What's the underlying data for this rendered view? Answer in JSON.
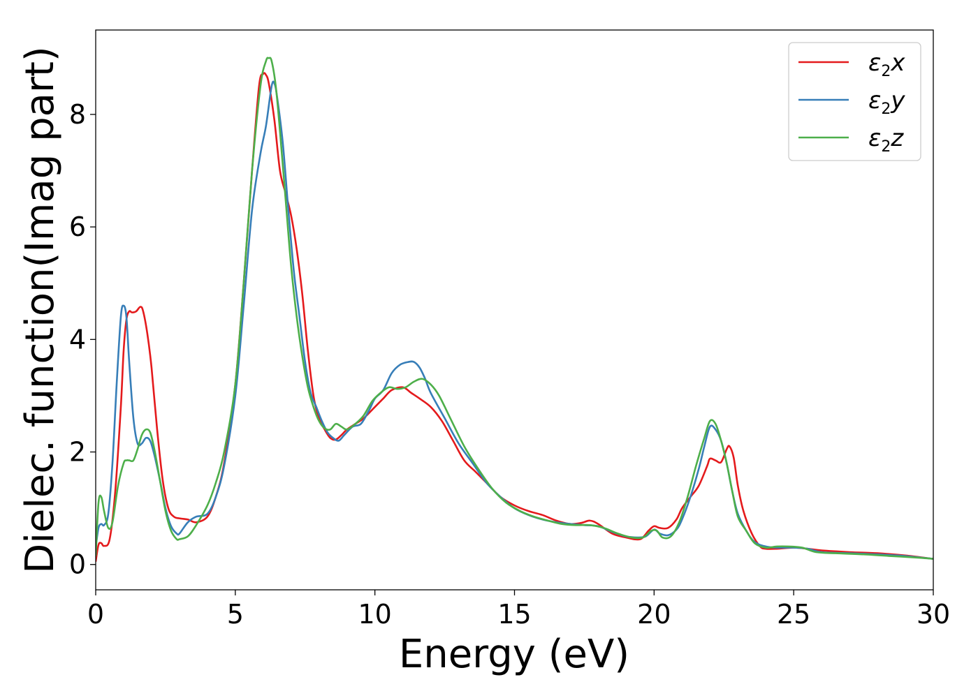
{
  "chart_data": {
    "type": "line",
    "title": "",
    "xlabel": "Energy (eV)",
    "ylabel": "Dielec. function(Imag part)",
    "xlim": [
      0,
      30
    ],
    "ylim": [
      -0.45,
      9.5
    ],
    "xticks": [
      0,
      5,
      10,
      15,
      20,
      25,
      30
    ],
    "xtick_labels": [
      "0",
      "5",
      "10",
      "15",
      "20",
      "25",
      "30"
    ],
    "yticks": [
      0,
      2,
      4,
      6,
      8
    ],
    "ytick_labels": [
      "0",
      "2",
      "4",
      "6",
      "8"
    ],
    "grid": false,
    "legend": "top-right",
    "series": [
      {
        "name": "ε2x",
        "label_main": "ε",
        "label_sub": "2",
        "label_var": "x",
        "color": "#e41a1c",
        "x": [
          0,
          0.1,
          0.2,
          0.3,
          0.5,
          0.7,
          0.9,
          1.0,
          1.1,
          1.2,
          1.3,
          1.45,
          1.6,
          1.7,
          1.85,
          2.0,
          2.2,
          2.4,
          2.6,
          2.8,
          3.0,
          3.3,
          3.6,
          4.0,
          4.3,
          4.6,
          5.0,
          5.3,
          5.6,
          5.85,
          6.0,
          6.1,
          6.2,
          6.4,
          6.6,
          6.8,
          7.0,
          7.2,
          7.4,
          7.6,
          7.8,
          8.0,
          8.2,
          8.4,
          8.6,
          8.8,
          9.0,
          9.3,
          9.6,
          10.0,
          10.3,
          10.6,
          11.0,
          11.3,
          11.6,
          12.0,
          12.4,
          12.8,
          13.2,
          13.6,
          14.0,
          14.5,
          15.0,
          15.5,
          16.0,
          16.5,
          17.0,
          17.4,
          17.7,
          18.0,
          18.5,
          19.0,
          19.5,
          19.8,
          20.0,
          20.2,
          20.5,
          20.8,
          21.0,
          21.3,
          21.6,
          21.9,
          22.0,
          22.2,
          22.4,
          22.6,
          22.7,
          22.85,
          23.0,
          23.2,
          23.5,
          23.8,
          24.0,
          24.4,
          25.0,
          25.5,
          26.0,
          27.0,
          28.0,
          29.0,
          30.0
        ],
        "y": [
          0.05,
          0.35,
          0.38,
          0.33,
          0.45,
          1.3,
          2.8,
          3.8,
          4.35,
          4.5,
          4.48,
          4.5,
          4.58,
          4.5,
          4.1,
          3.5,
          2.4,
          1.5,
          1.0,
          0.85,
          0.82,
          0.8,
          0.75,
          0.85,
          1.2,
          1.8,
          3.2,
          5.0,
          7.0,
          8.5,
          8.72,
          8.7,
          8.55,
          7.9,
          7.0,
          6.6,
          6.2,
          5.6,
          4.8,
          3.8,
          3.0,
          2.6,
          2.4,
          2.25,
          2.22,
          2.3,
          2.4,
          2.5,
          2.6,
          2.8,
          2.95,
          3.1,
          3.15,
          3.05,
          2.95,
          2.8,
          2.55,
          2.2,
          1.85,
          1.65,
          1.45,
          1.2,
          1.05,
          0.95,
          0.88,
          0.78,
          0.72,
          0.74,
          0.78,
          0.72,
          0.55,
          0.48,
          0.45,
          0.6,
          0.68,
          0.65,
          0.65,
          0.8,
          1.0,
          1.2,
          1.4,
          1.75,
          1.88,
          1.85,
          1.82,
          2.05,
          2.1,
          1.9,
          1.4,
          0.95,
          0.55,
          0.32,
          0.28,
          0.28,
          0.3,
          0.28,
          0.25,
          0.22,
          0.2,
          0.16,
          0.1
        ]
      },
      {
        "name": "ε2y",
        "label_main": "ε",
        "label_sub": "2",
        "label_var": "y",
        "color": "#377eb8",
        "x": [
          0,
          0.1,
          0.2,
          0.3,
          0.45,
          0.6,
          0.75,
          0.9,
          1.0,
          1.1,
          1.2,
          1.35,
          1.5,
          1.65,
          1.8,
          1.95,
          2.1,
          2.3,
          2.5,
          2.7,
          2.9,
          3.0,
          3.3,
          3.6,
          4.0,
          4.3,
          4.6,
          5.0,
          5.3,
          5.6,
          5.9,
          6.1,
          6.3,
          6.4,
          6.5,
          6.7,
          6.9,
          7.1,
          7.3,
          7.5,
          7.7,
          7.9,
          8.1,
          8.3,
          8.5,
          8.7,
          8.9,
          9.2,
          9.5,
          9.8,
          10.0,
          10.3,
          10.6,
          10.9,
          11.2,
          11.4,
          11.6,
          11.8,
          12.0,
          12.5,
          13.0,
          13.5,
          14.0,
          14.5,
          15.0,
          15.5,
          16.0,
          16.5,
          17.0,
          17.5,
          18.0,
          18.5,
          19.0,
          19.4,
          19.7,
          20.0,
          20.2,
          20.5,
          20.8,
          21.0,
          21.3,
          21.6,
          21.8,
          22.0,
          22.2,
          22.4,
          22.6,
          22.8,
          23.0,
          23.3,
          23.6,
          24.0,
          24.4,
          25.0,
          25.5,
          26.0,
          27.0,
          28.0,
          29.0,
          30.0
        ],
        "y": [
          0.3,
          0.65,
          0.72,
          0.7,
          0.9,
          1.8,
          3.2,
          4.4,
          4.6,
          4.4,
          3.6,
          2.6,
          2.15,
          2.15,
          2.25,
          2.2,
          1.95,
          1.5,
          1.0,
          0.68,
          0.55,
          0.55,
          0.75,
          0.85,
          0.9,
          1.2,
          1.75,
          3.0,
          4.6,
          6.3,
          7.3,
          7.8,
          8.5,
          8.55,
          8.3,
          7.5,
          6.3,
          5.2,
          4.4,
          3.6,
          3.05,
          2.8,
          2.55,
          2.35,
          2.25,
          2.2,
          2.3,
          2.45,
          2.5,
          2.75,
          2.95,
          3.1,
          3.4,
          3.55,
          3.6,
          3.6,
          3.5,
          3.3,
          3.05,
          2.6,
          2.15,
          1.8,
          1.45,
          1.2,
          1.0,
          0.88,
          0.8,
          0.75,
          0.72,
          0.7,
          0.68,
          0.58,
          0.5,
          0.48,
          0.5,
          0.62,
          0.55,
          0.52,
          0.62,
          0.8,
          1.2,
          1.7,
          2.1,
          2.45,
          2.4,
          2.2,
          1.8,
          1.3,
          0.9,
          0.6,
          0.4,
          0.32,
          0.3,
          0.3,
          0.28,
          0.22,
          0.2,
          0.18,
          0.15,
          0.1
        ]
      },
      {
        "name": "ε2z",
        "label_main": "ε",
        "label_sub": "2",
        "label_var": "z",
        "color": "#4daf4a",
        "x": [
          0,
          0.1,
          0.2,
          0.3,
          0.45,
          0.6,
          0.8,
          1.0,
          1.1,
          1.2,
          1.35,
          1.5,
          1.65,
          1.8,
          1.95,
          2.1,
          2.3,
          2.5,
          2.7,
          2.9,
          3.0,
          3.3,
          3.6,
          4.0,
          4.3,
          4.6,
          5.0,
          5.3,
          5.6,
          5.9,
          6.1,
          6.2,
          6.3,
          6.45,
          6.6,
          6.8,
          7.0,
          7.2,
          7.4,
          7.6,
          7.8,
          8.0,
          8.2,
          8.4,
          8.6,
          8.8,
          9.0,
          9.3,
          9.6,
          9.9,
          10.2,
          10.5,
          10.8,
          11.1,
          11.4,
          11.7,
          12.0,
          12.3,
          12.7,
          13.2,
          13.7,
          14.2,
          14.7,
          15.2,
          15.7,
          16.2,
          16.7,
          17.2,
          17.7,
          18.2,
          18.7,
          19.2,
          19.6,
          19.9,
          20.1,
          20.3,
          20.6,
          20.9,
          21.2,
          21.5,
          21.8,
          22.0,
          22.2,
          22.4,
          22.6,
          22.8,
          23.0,
          23.3,
          23.6,
          24.0,
          24.4,
          24.8,
          25.3,
          25.8,
          26.5,
          27.5,
          28.5,
          29.5,
          30.0
        ],
        "y": [
          0.15,
          1.1,
          1.2,
          0.95,
          0.65,
          0.75,
          1.4,
          1.8,
          1.85,
          1.85,
          1.85,
          2.05,
          2.3,
          2.4,
          2.35,
          2.05,
          1.5,
          0.95,
          0.6,
          0.45,
          0.45,
          0.5,
          0.7,
          1.05,
          1.45,
          2.0,
          3.2,
          5.0,
          7.0,
          8.5,
          8.95,
          9.0,
          8.95,
          8.5,
          7.7,
          6.5,
          5.3,
          4.4,
          3.7,
          3.15,
          2.8,
          2.55,
          2.42,
          2.4,
          2.5,
          2.45,
          2.4,
          2.5,
          2.65,
          2.9,
          3.05,
          3.15,
          3.12,
          3.15,
          3.25,
          3.3,
          3.2,
          3.0,
          2.6,
          2.1,
          1.7,
          1.35,
          1.1,
          0.95,
          0.85,
          0.78,
          0.72,
          0.7,
          0.7,
          0.65,
          0.55,
          0.48,
          0.48,
          0.6,
          0.6,
          0.48,
          0.5,
          0.75,
          1.2,
          1.75,
          2.25,
          2.55,
          2.5,
          2.2,
          1.8,
          1.3,
          0.85,
          0.6,
          0.38,
          0.3,
          0.32,
          0.32,
          0.3,
          0.22,
          0.2,
          0.18,
          0.15,
          0.12,
          0.1
        ]
      }
    ]
  }
}
